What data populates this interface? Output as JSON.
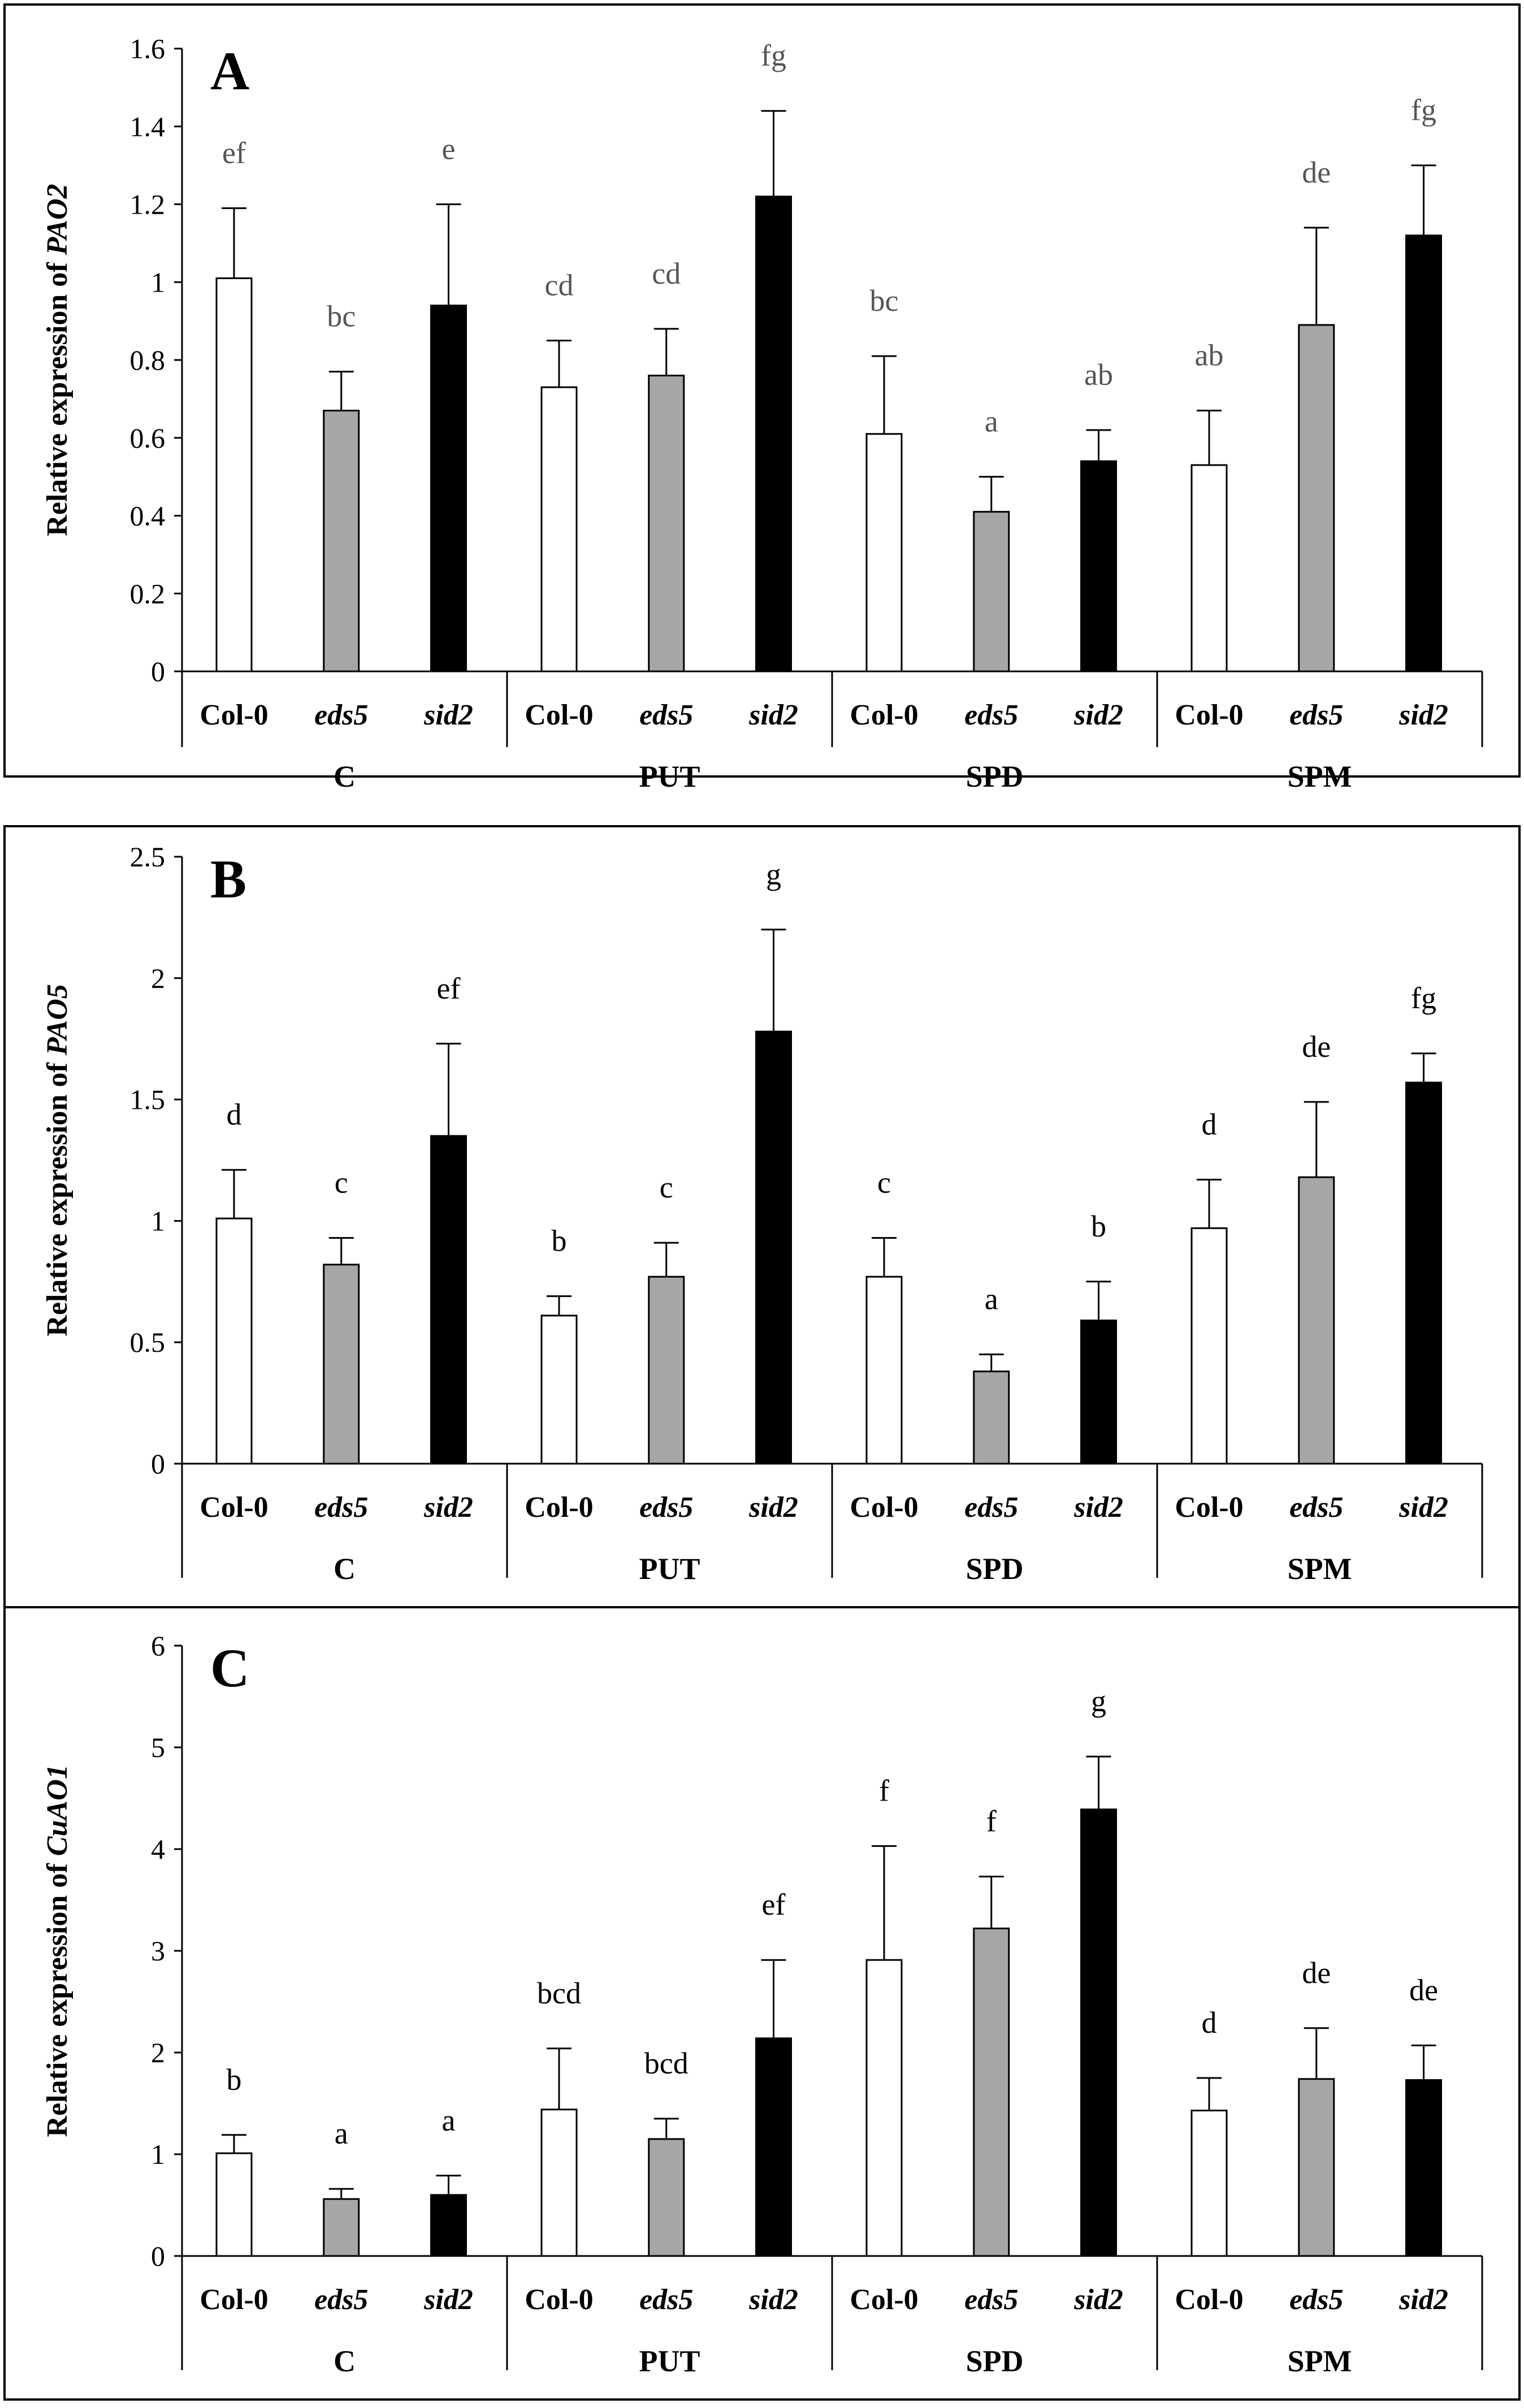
{
  "figure_groups": [
    "C",
    "PUT",
    "SPD",
    "SPM"
  ],
  "figure_genotypes": [
    "Col-0",
    "eds5",
    "sid2"
  ],
  "colors": {
    "Col-0": "#ffffff",
    "eds5": "#a6a6a6",
    "sid2": "#000000",
    "stroke": "#000000",
    "letters": "#555555"
  },
  "chart_data": [
    {
      "type": "bar",
      "panel": "A",
      "ylabel_prefix": "Relative expression of ",
      "ylabel_gene": "PAO2",
      "ylim": [
        0,
        1.6
      ],
      "yticks": [
        "0",
        "0.2",
        "0.4",
        "0.6",
        "0.8",
        "1",
        "1.2",
        "1.4",
        "1.6"
      ],
      "groups": [
        "C",
        "PUT",
        "SPD",
        "SPM"
      ],
      "genotypes": [
        "Col-0",
        "eds5",
        "sid2"
      ],
      "series": [
        {
          "name": "Col-0",
          "values": [
            1.01,
            0.73,
            0.61,
            0.53
          ],
          "errors": [
            0.18,
            0.12,
            0.2,
            0.14
          ],
          "letters": [
            "ef",
            "cd",
            "bc",
            "ab"
          ]
        },
        {
          "name": "eds5",
          "values": [
            0.67,
            0.76,
            0.41,
            0.89
          ],
          "errors": [
            0.1,
            0.12,
            0.09,
            0.25
          ],
          "letters": [
            "bc",
            "cd",
            "a",
            "de"
          ]
        },
        {
          "name": "sid2",
          "values": [
            0.94,
            1.22,
            0.54,
            1.12
          ],
          "errors": [
            0.26,
            0.22,
            0.08,
            0.18
          ],
          "letters": [
            "e",
            "fg",
            "ab",
            "fg"
          ]
        }
      ]
    },
    {
      "type": "bar",
      "panel": "B",
      "ylabel_prefix": "Relative expression of ",
      "ylabel_gene": "PAO5",
      "ylim": [
        0,
        2.5
      ],
      "yticks": [
        "0",
        "0.5",
        "1",
        "1.5",
        "2",
        "2.5"
      ],
      "groups": [
        "C",
        "PUT",
        "SPD",
        "SPM"
      ],
      "genotypes": [
        "Col-0",
        "eds5",
        "sid2"
      ],
      "series": [
        {
          "name": "Col-0",
          "values": [
            1.01,
            0.61,
            0.77,
            0.97
          ],
          "errors": [
            0.2,
            0.08,
            0.16,
            0.2
          ],
          "letters": [
            "d",
            "b",
            "c",
            "d"
          ]
        },
        {
          "name": "eds5",
          "values": [
            0.82,
            0.77,
            0.38,
            1.18
          ],
          "errors": [
            0.11,
            0.14,
            0.07,
            0.31
          ],
          "letters": [
            "c",
            "c",
            "a",
            "de"
          ]
        },
        {
          "name": "sid2",
          "values": [
            1.35,
            1.78,
            0.59,
            1.57
          ],
          "errors": [
            0.38,
            0.42,
            0.16,
            0.12
          ],
          "letters": [
            "ef",
            "g",
            "b",
            "fg"
          ]
        }
      ]
    },
    {
      "type": "bar",
      "panel": "C",
      "ylabel_prefix": "Relative expression of ",
      "ylabel_gene": "CuAO1",
      "ylim": [
        0,
        6
      ],
      "yticks": [
        "0",
        "1",
        "2",
        "3",
        "4",
        "5",
        "6"
      ],
      "groups": [
        "C",
        "PUT",
        "SPD",
        "SPM"
      ],
      "genotypes": [
        "Col-0",
        "eds5",
        "sid2"
      ],
      "series": [
        {
          "name": "Col-0",
          "values": [
            1.01,
            1.44,
            2.91,
            1.43
          ],
          "errors": [
            0.18,
            0.6,
            1.12,
            0.32
          ],
          "letters": [
            "b",
            "bcd",
            "f",
            "d"
          ]
        },
        {
          "name": "eds5",
          "values": [
            0.56,
            1.15,
            3.22,
            1.74
          ],
          "errors": [
            0.1,
            0.2,
            0.51,
            0.5
          ],
          "letters": [
            "a",
            "bcd",
            "f",
            "de"
          ]
        },
        {
          "name": "sid2",
          "values": [
            0.6,
            2.14,
            4.39,
            1.73
          ],
          "errors": [
            0.19,
            0.77,
            0.52,
            0.34
          ],
          "letters": [
            "a",
            "ef",
            "g",
            "de"
          ]
        }
      ]
    }
  ]
}
